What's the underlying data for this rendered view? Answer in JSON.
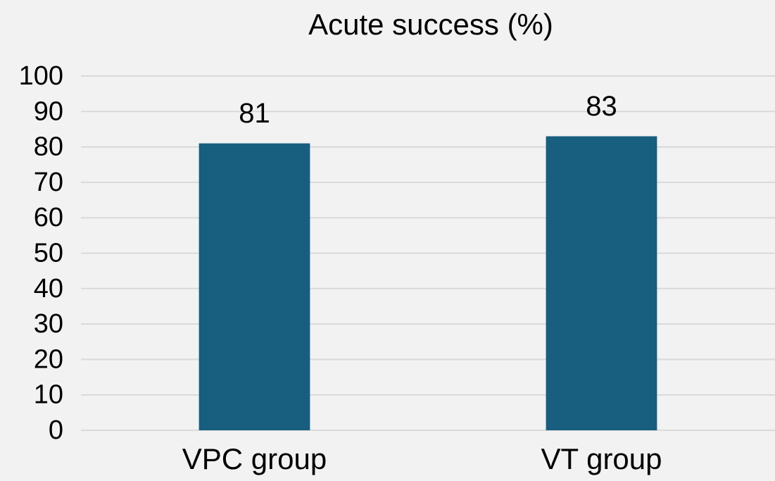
{
  "chart_data": {
    "type": "bar",
    "title": "Acute success (%)",
    "categories": [
      "VPC group",
      "VT group"
    ],
    "values": [
      81,
      83
    ],
    "color": "#175e7f",
    "ylim": [
      0,
      100
    ],
    "yticks": [
      0,
      10,
      20,
      30,
      40,
      50,
      60,
      70,
      80,
      90,
      100
    ],
    "grid": true
  }
}
